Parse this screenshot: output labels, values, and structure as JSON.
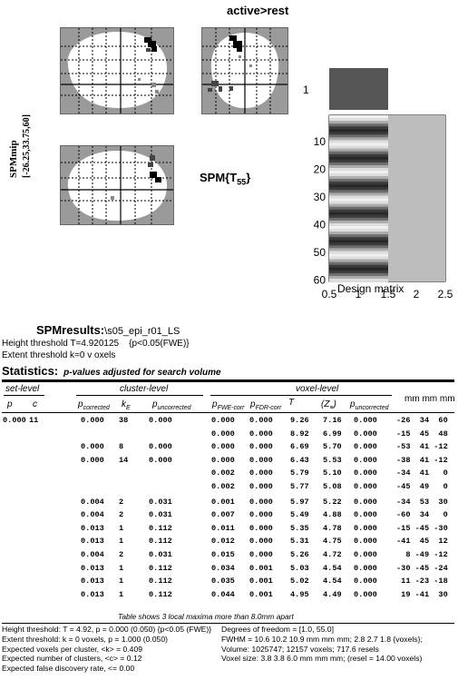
{
  "header": {
    "contrast": "active>rest"
  },
  "glass_brain": {
    "side_label_line1": "SPMmip",
    "side_label_line2": "[-26.25,33.75,60]",
    "stat_label": "SPM{T",
    "stat_df": "55",
    "stat_close": "}"
  },
  "design_matrix": {
    "top_label": "1",
    "y_ticks": [
      "10",
      "20",
      "30",
      "40",
      "50",
      "60"
    ],
    "x_ticks": [
      "0.5",
      "1",
      "1.5",
      "2",
      "2.5"
    ],
    "xlabel": "Design matrix",
    "colors": {
      "top_cell": "#555555",
      "constant": "#bdbdbd"
    }
  },
  "results": {
    "title": "SPMresults:",
    "path": "\\s05_epi_r01_LS",
    "height_threshold": "Height threshold T=4.920125",
    "height_p": "{p<0.05(FWE)}",
    "extent_threshold": "Extent threshold k=0 v oxels"
  },
  "statistics": {
    "label": "Statistics:",
    "subtitle": "p-values adjusted for search volume",
    "groups": {
      "set": "set-level",
      "cluster": "cluster-level",
      "voxel": "voxel-level",
      "mm": "mm mm mm"
    },
    "cols": {
      "p": "p",
      "c": "c",
      "pcorr": "p",
      "pcorr_sub": "corrected",
      "kE": "k",
      "kE_sub": "E",
      "puncorr": "p",
      "puncorr_sub": "uncorrected",
      "pfwe": "p",
      "pfwe_sub": "FWE-corr",
      "pfdr": "p",
      "pfdr_sub": "FDR-corr",
      "T": "T",
      "Z": "(Z",
      "Z_sub": "≡",
      "Z_close": ")",
      "pvox": "p",
      "pvox_sub": "uncorrected"
    },
    "rows": [
      [
        "0.000",
        "11",
        "0.000",
        "38",
        "0.000",
        "0.000",
        "0.000",
        "9.26",
        "7.16",
        "0.000",
        "-26  34  60"
      ],
      [
        "",
        "",
        "",
        "",
        "",
        "0.000",
        "0.000",
        "8.92",
        "6.99",
        "0.000",
        "-15  45  48"
      ],
      [
        "",
        "",
        "0.000",
        "8",
        "0.000",
        "0.000",
        "0.000",
        "6.69",
        "5.70",
        "0.000",
        "-53  41 -12"
      ],
      [
        "",
        "",
        "0.000",
        "14",
        "0.000",
        "0.000",
        "0.000",
        "6.43",
        "5.53",
        "0.000",
        "-38  41 -12"
      ],
      [
        "",
        "",
        "",
        "",
        "",
        "0.002",
        "0.000",
        "5.79",
        "5.10",
        "0.000",
        "-34  41   0"
      ],
      [
        "",
        "",
        "",
        "",
        "",
        "0.002",
        "0.000",
        "5.77",
        "5.08",
        "0.000",
        "-45  49   0"
      ],
      [
        "",
        "",
        "0.004",
        "2",
        "0.031",
        "0.001",
        "0.000",
        "5.97",
        "5.22",
        "0.000",
        "-34  53  30"
      ],
      [
        "",
        "",
        "0.004",
        "2",
        "0.031",
        "0.007",
        "0.000",
        "5.49",
        "4.88",
        "0.000",
        "-60  34   0"
      ],
      [
        "",
        "",
        "0.013",
        "1",
        "0.112",
        "0.011",
        "0.000",
        "5.35",
        "4.78",
        "0.000",
        "-15 -45 -30"
      ],
      [
        "",
        "",
        "0.013",
        "1",
        "0.112",
        "0.012",
        "0.000",
        "5.31",
        "4.75",
        "0.000",
        "-41  45  12"
      ],
      [
        "",
        "",
        "0.004",
        "2",
        "0.031",
        "0.015",
        "0.000",
        "5.26",
        "4.72",
        "0.000",
        "  8 -49 -12"
      ],
      [
        "",
        "",
        "0.013",
        "1",
        "0.112",
        "0.034",
        "0.001",
        "5.03",
        "4.54",
        "0.000",
        "-30 -45 -24"
      ],
      [
        "",
        "",
        "0.013",
        "1",
        "0.112",
        "0.035",
        "0.001",
        "5.02",
        "4.54",
        "0.000",
        " 11 -23 -18"
      ],
      [
        "",
        "",
        "0.013",
        "1",
        "0.112",
        "0.044",
        "0.001",
        "4.95",
        "4.49",
        "0.000",
        " 19 -41  30"
      ]
    ],
    "note": "Table shows 3 local maxima more than 8.0mm apart"
  },
  "footer": {
    "left": [
      "Height threshold: T = 4.92, p = 0.000 (0.050) {p<0.05 (FWE)}",
      "Extent threshold: k = 0 voxels, p = 1.000 (0.050)",
      "Expected voxels per cluster, <k> = 0.409",
      "Expected number of clusters, <c> = 0.12",
      "Expected false discovery rate, <= 0.00"
    ],
    "right": [
      "Degrees of freedom = [1.0, 55.0]",
      "FWHM = 10.6 10.2 10.9 mm mm mm; 2.8 2.7 1.8 {voxels};",
      "Volume: 1025747; 12157 voxels; 717.6 resels",
      "Voxel size: 3.8 3.8 6.0 mm mm mm; (resel = 14.00 voxels)"
    ]
  }
}
